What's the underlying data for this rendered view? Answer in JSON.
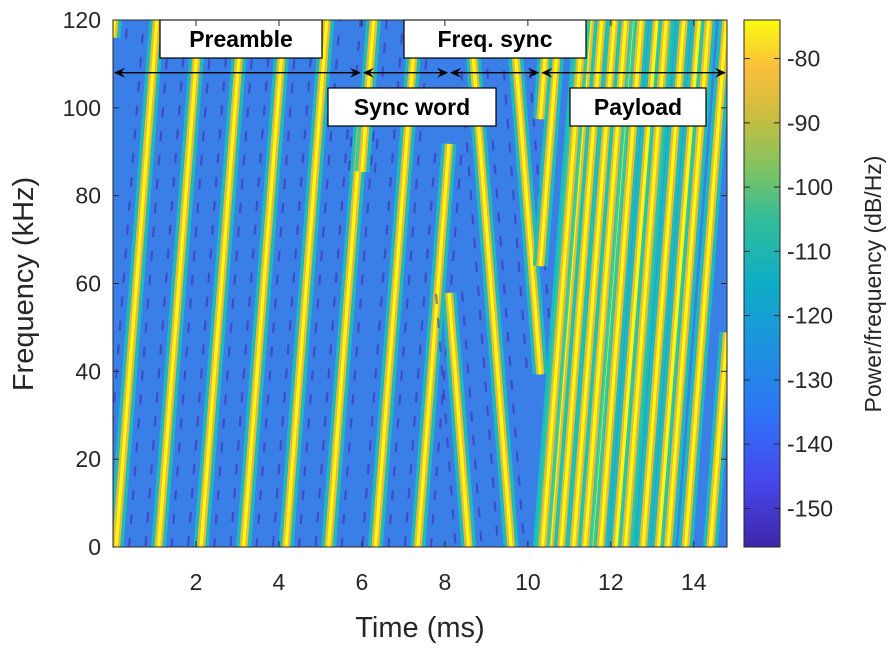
{
  "chart_data": {
    "type": "heatmap",
    "subtype": "spectrogram",
    "xlabel": "Time (ms)",
    "ylabel": "Frequency (kHz)",
    "colorbar_label": "Power/frequency (dB/Hz)",
    "xlim": [
      0,
      14.8
    ],
    "ylim": [
      0,
      120
    ],
    "clim": [
      -156,
      -74
    ],
    "colormap": "parula",
    "x_ticks": [
      2,
      4,
      6,
      8,
      10,
      12,
      14
    ],
    "y_ticks": [
      0,
      20,
      40,
      60,
      80,
      100,
      120
    ],
    "colorbar_ticks": [
      -80,
      -90,
      -100,
      -110,
      -120,
      -130,
      -140,
      -150
    ],
    "bandwidth_khz": 125,
    "symbol_duration_ms": 1.024,
    "segments": [
      {
        "name": "Preamble",
        "start_ms": 0.0,
        "end_ms": 6.0,
        "symbol_type": "upchirp"
      },
      {
        "name": "Sync word",
        "start_ms": 6.0,
        "end_ms": 8.1,
        "symbol_type": "upchirp-shifted"
      },
      {
        "name": "Freq. sync",
        "start_ms": 8.1,
        "end_ms": 10.3,
        "symbol_type": "downchirp"
      },
      {
        "name": "Payload",
        "start_ms": 10.3,
        "end_ms": 14.8,
        "symbol_type": "upchirp-shifted"
      }
    ],
    "annotation_arrow_y_khz": 108,
    "colors": {
      "background": "#3a7ee8",
      "chirp_peak": "#f9fb0e",
      "chirp_mid": "#19c5b0",
      "notch": "#3e26a8"
    }
  }
}
